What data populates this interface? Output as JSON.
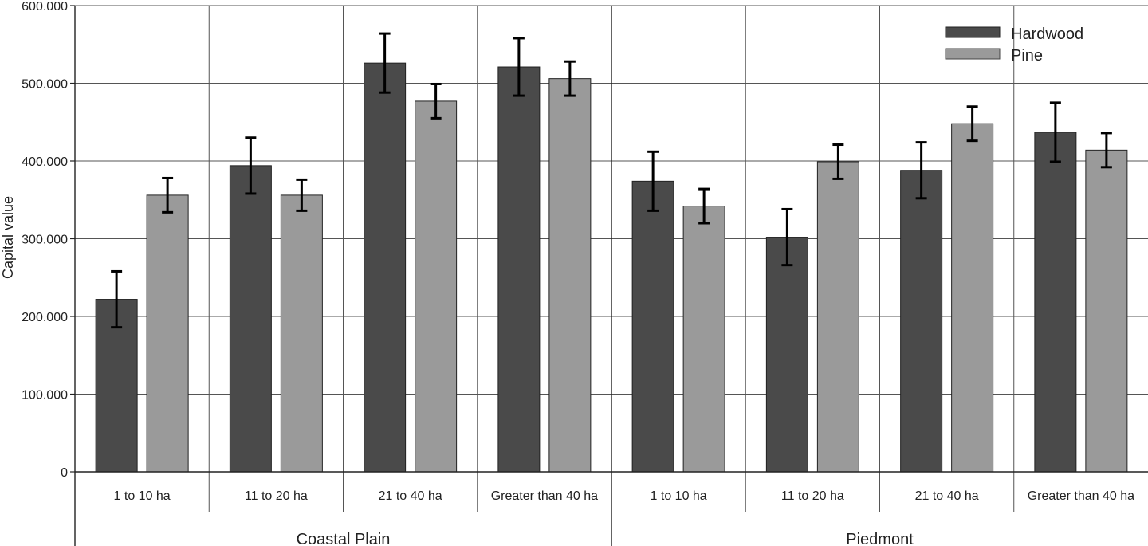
{
  "chart_data": {
    "type": "bar",
    "ylabel": "Capital value",
    "ylim": [
      0,
      600000
    ],
    "yticks": [
      0,
      100000,
      200000,
      300000,
      400000,
      500000,
      600000
    ],
    "ytick_labels": [
      "0",
      "100.000",
      "200.000",
      "300.000",
      "400.000",
      "500.000",
      "600.000"
    ],
    "groups": [
      {
        "name": "Coastal Plain",
        "categories": [
          "1 to 10 ha",
          "11 to 20 ha",
          "21 to 40 ha",
          "Greater than 40 ha"
        ]
      },
      {
        "name": "Piedmont",
        "categories": [
          "1 to 10 ha",
          "11 to 20 ha",
          "21 to 40 ha",
          "Greater than 40 ha"
        ]
      }
    ],
    "series": [
      {
        "name": "Hardwood",
        "color": "#4a4a4a",
        "values": [
          222000,
          394000,
          526000,
          521000,
          374000,
          302000,
          388000,
          437000
        ],
        "error": [
          36000,
          36000,
          38000,
          37000,
          38000,
          36000,
          36000,
          38000
        ]
      },
      {
        "name": "Pine",
        "color": "#9a9a9a",
        "values": [
          356000,
          356000,
          477000,
          506000,
          342000,
          399000,
          448000,
          414000
        ],
        "error": [
          22000,
          20000,
          22000,
          22000,
          22000,
          22000,
          22000,
          22000
        ]
      }
    ],
    "grid": true,
    "legend_position": "top-right"
  }
}
